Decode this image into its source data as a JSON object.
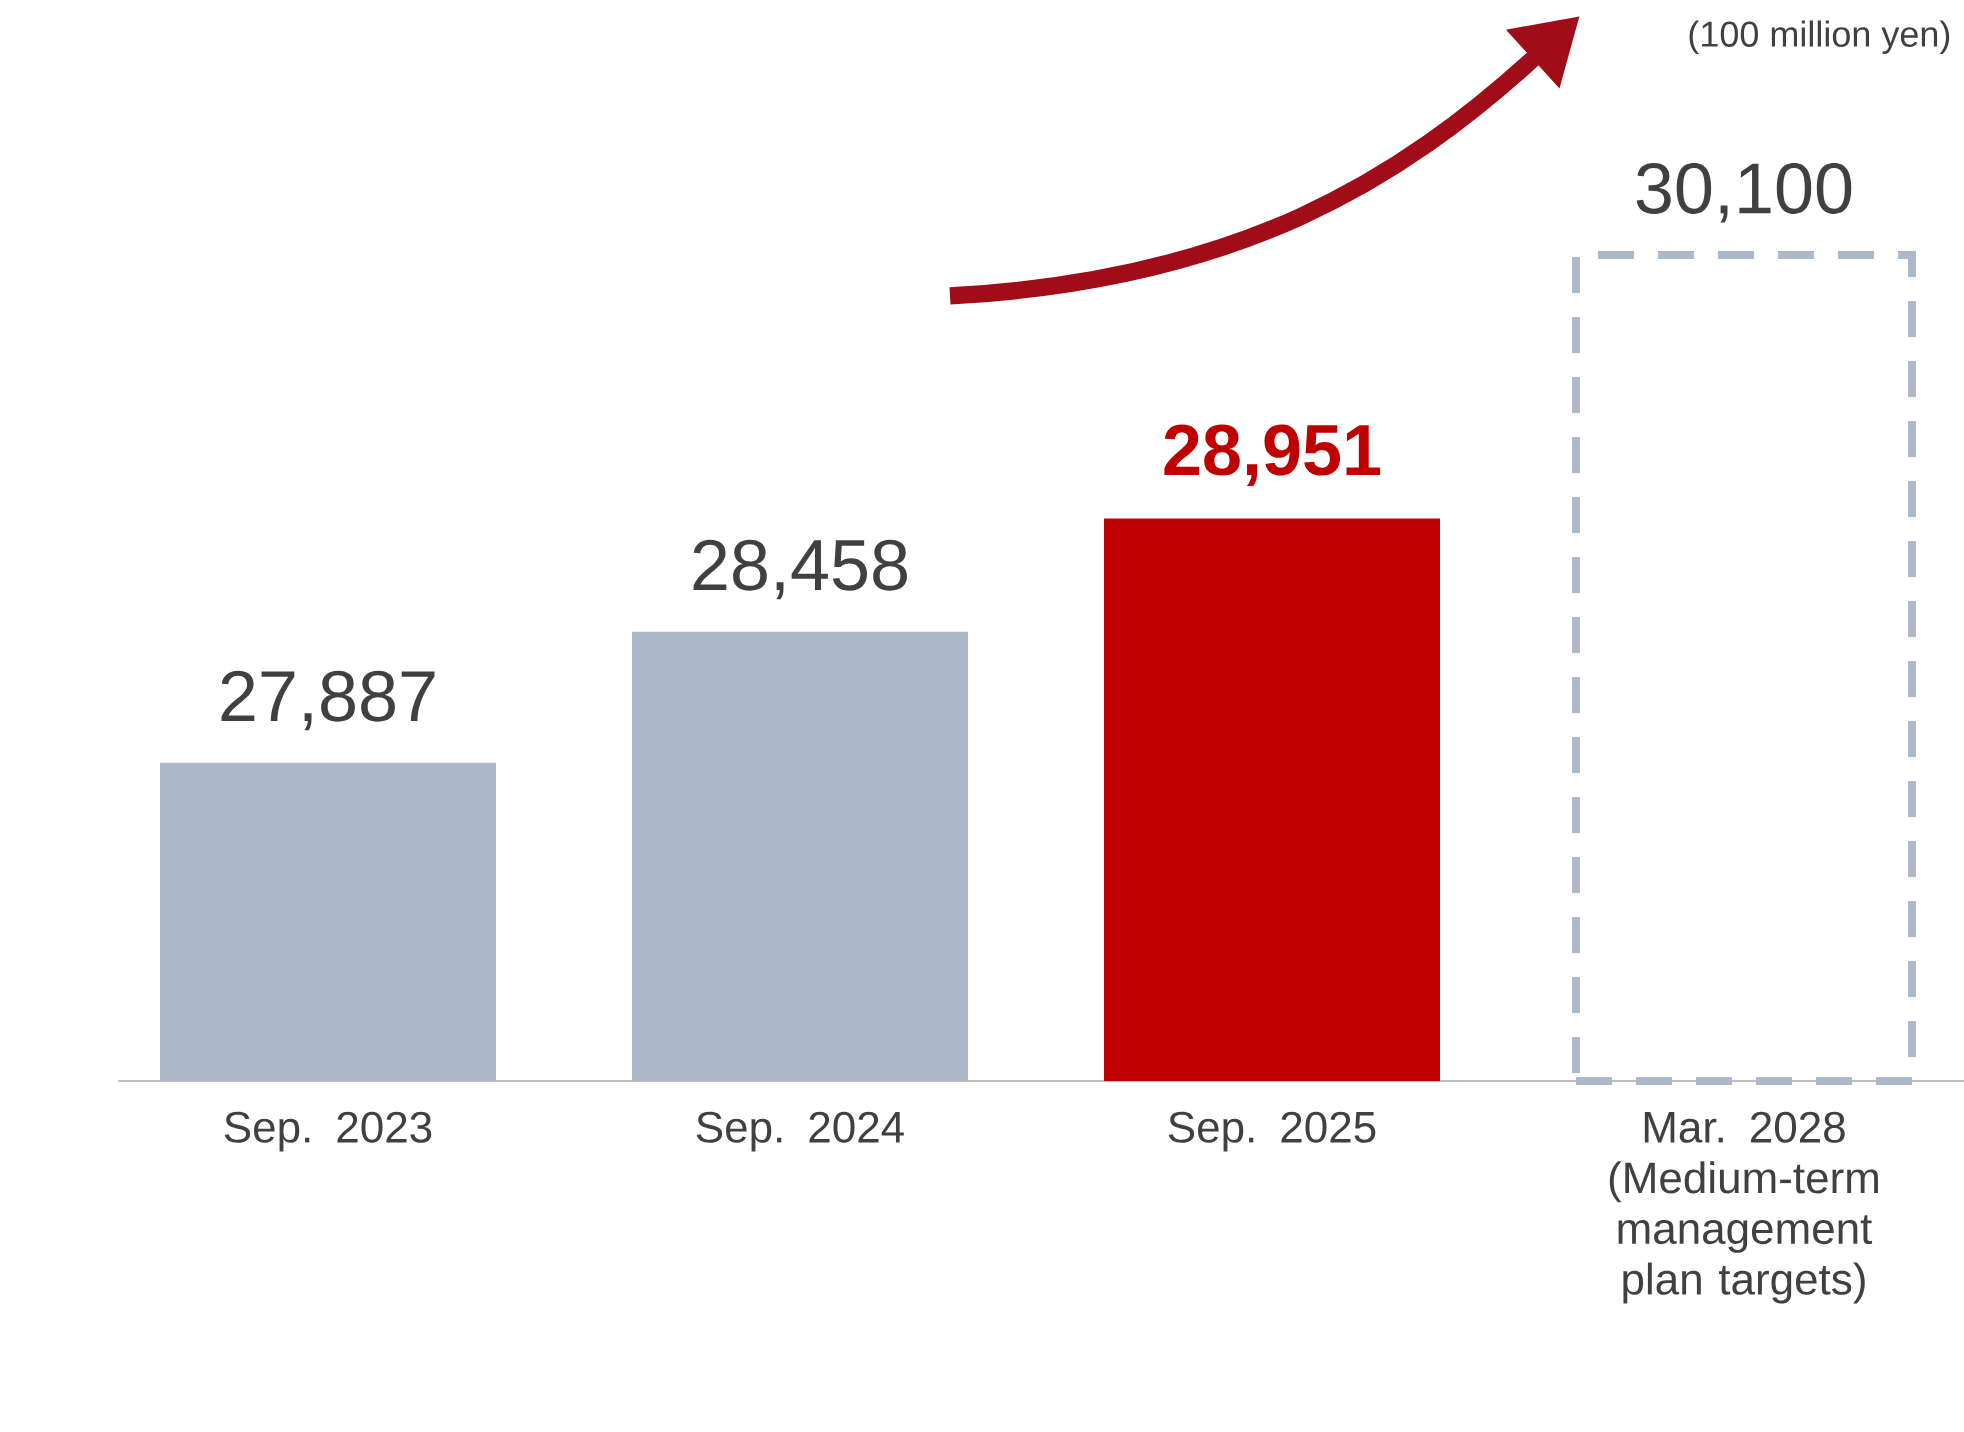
{
  "chart_data": {
    "type": "bar",
    "categories": [
      "Sep. 2023",
      "Sep. 2024",
      "Sep. 2025",
      "Mar. 2028 (Medium-term management plan targets)"
    ],
    "series": [
      {
        "colors": [
          "#adb9ca",
          "#adb9ca",
          "#c00000",
          "#adb9ca"
        ],
        "values": [
          27887,
          28458,
          28951,
          null
        ],
        "value_labels": [
          "27,887",
          "28,458",
          "28,951",
          null
        ]
      },
      {
        "color": "#adb9ca",
        "line_style": "dashed",
        "values": [
          null,
          null,
          null,
          30100
        ],
        "value_labels": [
          null,
          null,
          null,
          "30,100"
        ]
      }
    ],
    "ylim": [
      26500,
      30100
    ],
    "annotations": [
      "(100 million yen)"
    ]
  }
}
